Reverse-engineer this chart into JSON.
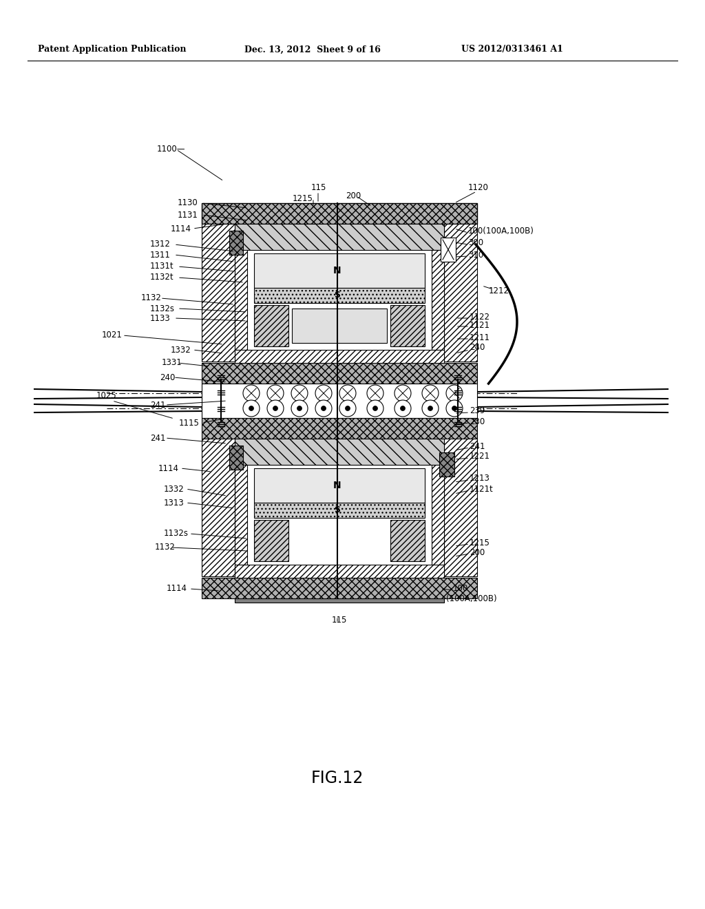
{
  "header_left": "Patent Application Publication",
  "header_mid": "Dec. 13, 2012  Sheet 9 of 16",
  "header_right": "US 2012/0313461 A1",
  "fig_label": "FIG.12",
  "background": "#ffffff",
  "line_color": "#000000"
}
